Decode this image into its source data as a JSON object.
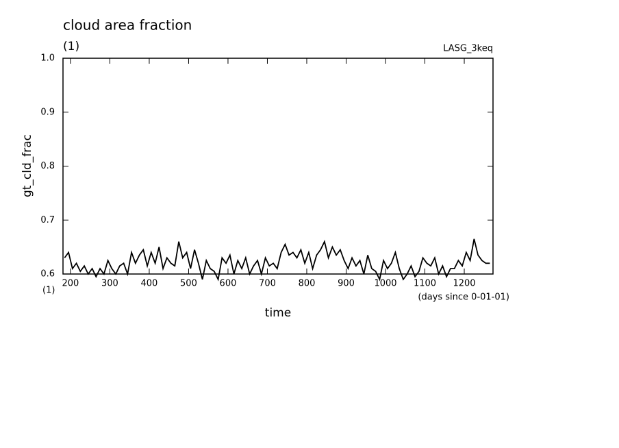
{
  "chart_data": {
    "type": "line",
    "title": "cloud area fraction",
    "subtitle": "(1)",
    "source": "LASG_3keq",
    "ylabel": "gt_cld_frac",
    "xlabel": "time",
    "x_units_left": "(1)",
    "x_units": "(days since 0-01-01)",
    "xlim": [
      181,
      1273
    ],
    "xticks": [
      200,
      300,
      400,
      500,
      600,
      700,
      800,
      900,
      1000,
      1100,
      1200
    ],
    "ylim": [
      0.6,
      1
    ],
    "yticks": [
      0.6,
      0.7,
      0.8,
      0.9,
      {
        "value": 1,
        "label": "1.0"
      }
    ],
    "series": [
      {
        "color": "#000000",
        "x": [
          185,
          195,
          205,
          215,
          225,
          235,
          245,
          255,
          265,
          275,
          285,
          295,
          305,
          315,
          325,
          335,
          345,
          355,
          365,
          375,
          385,
          395,
          405,
          415,
          425,
          435,
          445,
          455,
          465,
          475,
          485,
          495,
          505,
          515,
          525,
          535,
          545,
          555,
          565,
          575,
          585,
          595,
          605,
          615,
          625,
          635,
          645,
          655,
          665,
          675,
          685,
          695,
          705,
          715,
          725,
          735,
          745,
          755,
          765,
          775,
          785,
          795,
          805,
          815,
          825,
          835,
          845,
          855,
          865,
          875,
          885,
          895,
          905,
          915,
          925,
          935,
          945,
          955,
          965,
          975,
          985,
          995,
          1005,
          1015,
          1025,
          1035,
          1045,
          1055,
          1065,
          1075,
          1085,
          1095,
          1105,
          1115,
          1125,
          1135,
          1145,
          1155,
          1165,
          1175,
          1185,
          1195,
          1205,
          1215,
          1225,
          1235,
          1245,
          1255,
          1265
        ],
        "values": [
          0.63,
          0.64,
          0.61,
          0.62,
          0.605,
          0.615,
          0.6,
          0.61,
          0.595,
          0.61,
          0.6,
          0.625,
          0.61,
          0.6,
          0.615,
          0.62,
          0.6,
          0.64,
          0.62,
          0.635,
          0.645,
          0.615,
          0.64,
          0.62,
          0.65,
          0.61,
          0.63,
          0.62,
          0.615,
          0.66,
          0.63,
          0.64,
          0.61,
          0.645,
          0.62,
          0.59,
          0.625,
          0.61,
          0.605,
          0.59,
          0.63,
          0.62,
          0.635,
          0.6,
          0.625,
          0.61,
          0.63,
          0.6,
          0.615,
          0.625,
          0.6,
          0.63,
          0.615,
          0.62,
          0.61,
          0.64,
          0.655,
          0.635,
          0.64,
          0.63,
          0.645,
          0.62,
          0.64,
          0.61,
          0.635,
          0.645,
          0.66,
          0.63,
          0.65,
          0.635,
          0.645,
          0.625,
          0.61,
          0.63,
          0.615,
          0.625,
          0.6,
          0.635,
          0.61,
          0.605,
          0.59,
          0.625,
          0.61,
          0.62,
          0.64,
          0.61,
          0.59,
          0.6,
          0.615,
          0.595,
          0.605,
          0.63,
          0.62,
          0.615,
          0.63,
          0.6,
          0.615,
          0.595,
          0.61,
          0.61,
          0.625,
          0.615,
          0.64,
          0.625,
          0.665,
          0.635,
          0.625,
          0.62,
          0.62
        ]
      }
    ]
  }
}
